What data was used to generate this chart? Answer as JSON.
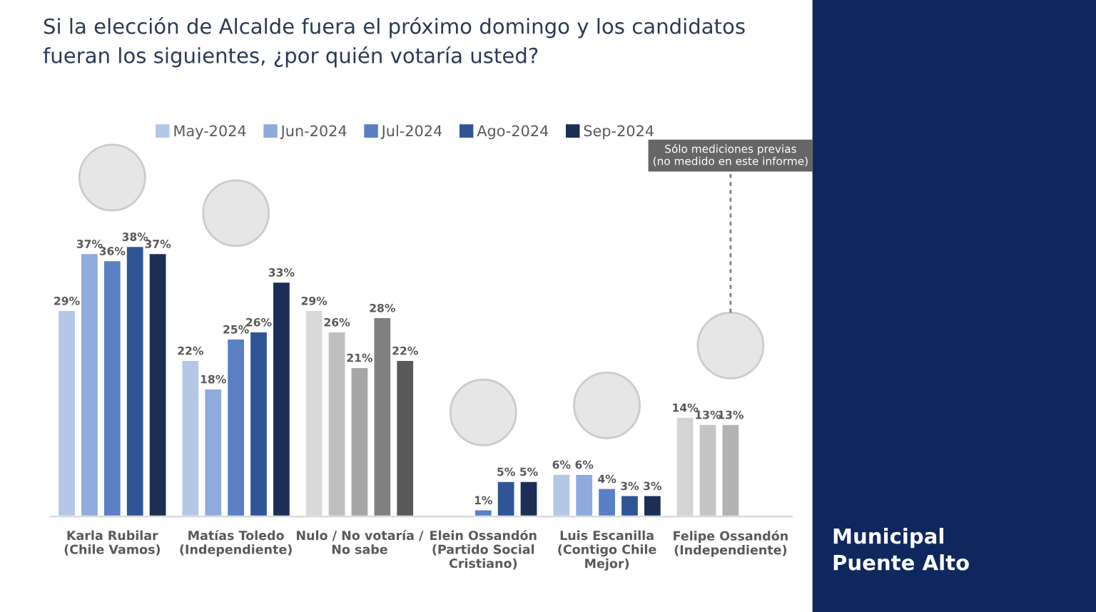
{
  "chart_data": {
    "type": "bar",
    "title": "Si la elección de Alcalde fuera el próximo domingo y los candidatos\nfueran los siguientes, ¿por quién votaría usted?",
    "categories": [
      "Karla Rubilar\n(Chile Vamos)",
      "Matías Toledo\n(Independiente)",
      "Nulo / No votaría /\nNo sabe",
      "Elein Ossandón\n(Partido Social\nCristiano)",
      "Luis Escanilla\n(Contigo Chile\nMejor)",
      "Felipe Ossandón\n(Independiente)"
    ],
    "series": [
      {
        "name": "May-2024",
        "color": "#b4c7e7",
        "colors": [
          "#b4c7e7",
          "#b4c7e7",
          "#d9d9d9",
          "#b4c7e7",
          "#b4c7e7",
          "#d4d4d4"
        ],
        "values": [
          29,
          22,
          29,
          null,
          6,
          14
        ],
        "value_labels": [
          "29%",
          "22%",
          "29%",
          null,
          "6%",
          "14%"
        ]
      },
      {
        "name": "Jun-2024",
        "color": "#8faadc",
        "colors": [
          "#8faadc",
          "#8faadc",
          "#bfbfbf",
          "#8faadc",
          "#8faadc",
          "#c4c4c4"
        ],
        "values": [
          37,
          18,
          26,
          null,
          6,
          13
        ],
        "value_labels": [
          "37%",
          "18%",
          "26%",
          null,
          "6%",
          "13%"
        ]
      },
      {
        "name": "Jul-2024",
        "color": "#5b7fc4",
        "colors": [
          "#5b7fc4",
          "#5b7fc4",
          "#a6a6a6",
          "#5b7fc4",
          "#5b7fc4",
          "#b3b3b3"
        ],
        "values": [
          36,
          25,
          21,
          1,
          4,
          13
        ],
        "value_labels": [
          "36%",
          "25%",
          "21%",
          "1%",
          "4%",
          "13%"
        ]
      },
      {
        "name": "Ago-2024",
        "color": "#2f5597",
        "colors": [
          "#2f5597",
          "#2f5597",
          "#808080",
          "#2f5597",
          "#2f5597",
          "#2f5597"
        ],
        "values": [
          38,
          26,
          28,
          5,
          3,
          null
        ],
        "value_labels": [
          "38%",
          "26%",
          "28%",
          "5%",
          "3%",
          null
        ]
      },
      {
        "name": "Sep-2024",
        "color": "#1c2e55",
        "colors": [
          "#1c2e55",
          "#1c2e55",
          "#595959",
          "#1c2e55",
          "#1c2e55",
          "#1c2e55"
        ],
        "values": [
          37,
          33,
          22,
          5,
          3,
          null
        ],
        "value_labels": [
          "37%",
          "33%",
          "22%",
          "5%",
          "3%",
          null
        ]
      }
    ],
    "annotations": [
      "Sólo mediciones previas\n(no medido en este informe)",
      "Municipal\nPuente Alto"
    ],
    "legend": "top",
    "tick_labels": "x",
    "grid": false
  }
}
